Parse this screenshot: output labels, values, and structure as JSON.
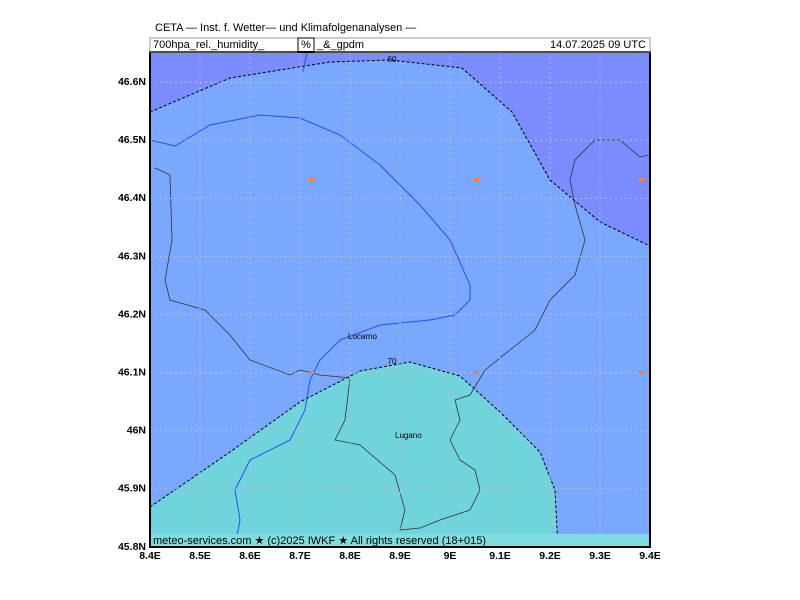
{
  "header": {
    "line1": "CETA — Inst. f. Wetter— und Klimafolgenanalysen —",
    "field": "700hpa_rel._humidity_",
    "unit": "%",
    "field2": "_&_gpdm",
    "time": "14.07.2025  09 UTC"
  },
  "map": {
    "xlim": [
      8.4,
      9.4
    ],
    "ylim": [
      45.8,
      46.652
    ],
    "xticks": [
      {
        "value": 8.4,
        "label": "8.4E"
      },
      {
        "value": 8.5,
        "label": "8.5E"
      },
      {
        "value": 8.6,
        "label": "8.6E"
      },
      {
        "value": 8.7,
        "label": "8.7E"
      },
      {
        "value": 8.8,
        "label": "8.8E"
      },
      {
        "value": 8.9,
        "label": "8.9E"
      },
      {
        "value": 9,
        "label": "9E"
      },
      {
        "value": 9.1,
        "label": "9.1E"
      },
      {
        "value": 9.2,
        "label": "9.2E"
      },
      {
        "value": 9.3,
        "label": "9.3E"
      },
      {
        "value": 9.4,
        "label": "9.4E"
      }
    ],
    "yticks": [
      {
        "value": 45.8,
        "label": "45.8N"
      },
      {
        "value": 45.9,
        "label": "45.9N"
      },
      {
        "value": 46,
        "label": "46N"
      },
      {
        "value": 46.1,
        "label": "46.1N"
      },
      {
        "value": 46.2,
        "label": "46.2N"
      },
      {
        "value": 46.3,
        "label": "46.3N"
      },
      {
        "value": 46.4,
        "label": "46.4N"
      },
      {
        "value": 46.5,
        "label": "46.5N"
      },
      {
        "value": 46.6,
        "label": "46.6N"
      }
    ],
    "contour_labels": [
      "60",
      "70"
    ],
    "places": [
      "Locarno",
      "Lugano"
    ],
    "footer": "meteo-services.com ★ (c)2025 IWKF ★ All rights reserved (18+015)"
  }
}
